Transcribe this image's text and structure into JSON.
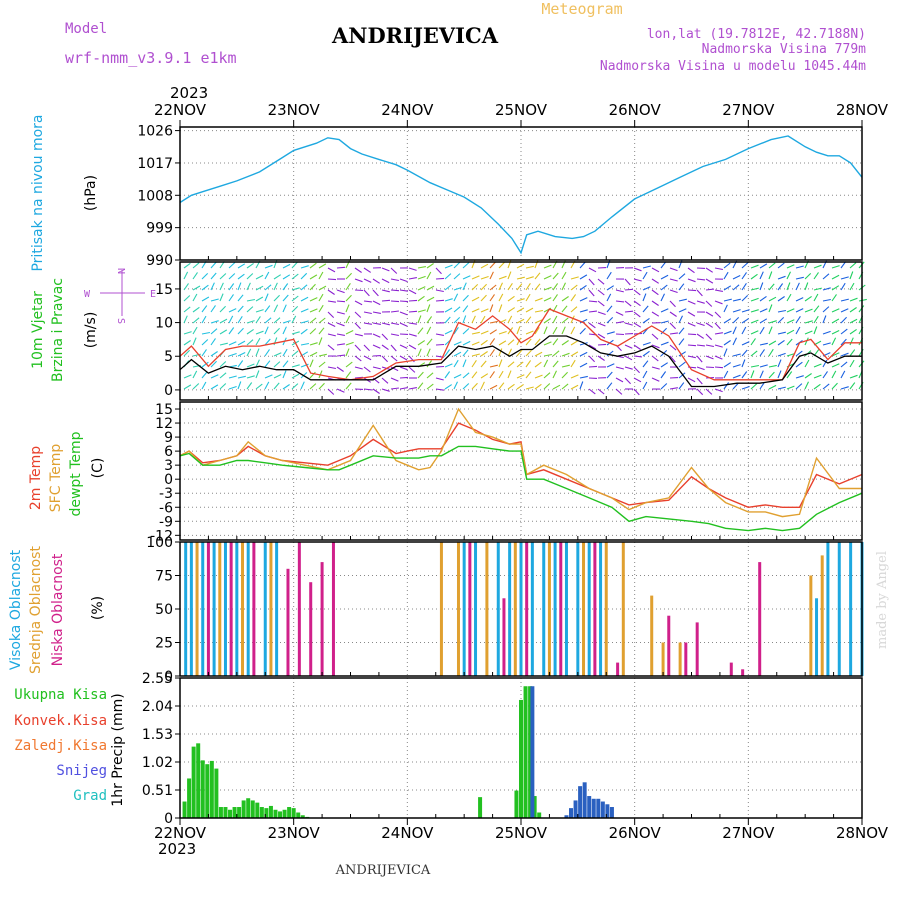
{
  "header": {
    "model_label": "Model",
    "model_name": "wrf-nmm_v3.9.1  e1km",
    "station": "ANDRIJEVICA",
    "product": "Meteogram",
    "lonlat": "lon,lat (19.7812E, 42.7188N)",
    "elevation": "Nadmorska Visina 779m",
    "model_elevation": "Nadmorska Visina u modelu 1045.44m",
    "year_top": "2023",
    "year_bottom": "2023",
    "footer_station": "ANDRIJEVICA",
    "credit": "made by Angel"
  },
  "colors": {
    "pressure": "#1ea8e0",
    "temp2m": "#e8402c",
    "sfc": "#e0a030",
    "dewpt": "#22c020",
    "wind_speed": "#000000",
    "wind_gust": "#e8402c",
    "purple_text": "#b050d0",
    "orange_text": "#f0c060"
  },
  "chart_data": [
    {
      "type": "line",
      "panel": "pressure",
      "ylabel": "Pritisak na nivou mora",
      "unit": "(hPa)",
      "x_ticks": [
        "22NOV",
        "23NOV",
        "24NOV",
        "25NOV",
        "26NOV",
        "27NOV",
        "28NOV"
      ],
      "ylim": [
        990,
        1027
      ],
      "y_ticks": [
        990,
        999,
        1008,
        1017,
        1026
      ],
      "grid": true,
      "x": [
        0,
        0.1,
        0.2,
        0.35,
        0.5,
        0.7,
        0.9,
        1.0,
        1.2,
        1.3,
        1.4,
        1.5,
        1.6,
        1.75,
        1.9,
        2.0,
        2.2,
        2.35,
        2.5,
        2.65,
        2.8,
        2.92,
        3.0,
        3.05,
        3.15,
        3.3,
        3.45,
        3.55,
        3.65,
        3.8,
        4.0,
        4.2,
        4.4,
        4.6,
        4.8,
        5.0,
        5.2,
        5.35,
        5.5,
        5.6,
        5.7,
        5.8,
        5.9,
        6.0
      ],
      "values": [
        1006,
        1008,
        1009,
        1010.5,
        1012,
        1014.5,
        1018.5,
        1020.5,
        1022.5,
        1024,
        1023.5,
        1021,
        1019.5,
        1018,
        1016.5,
        1015,
        1011.5,
        1009.5,
        1007.5,
        1004.5,
        1000,
        996,
        992,
        997,
        998,
        996.5,
        996,
        996.5,
        998,
        1002,
        1007,
        1010,
        1013,
        1016,
        1018,
        1021,
        1023.5,
        1024.5,
        1021.5,
        1020,
        1019,
        1019,
        1017,
        1013
      ]
    },
    {
      "type": "line",
      "panel": "wind",
      "ylabel": "10m Vjetar Brzina i Pravac",
      "unit": "(m/s)",
      "ylim": [
        -1.5,
        19
      ],
      "y_ticks": [
        0,
        5,
        10,
        15
      ],
      "compass": {
        "n": "N",
        "s": "S",
        "e": "E",
        "w": "W"
      },
      "grid": true,
      "series": [
        {
          "key": "speed",
          "x": [
            0,
            0.1,
            0.25,
            0.4,
            0.55,
            0.7,
            0.85,
            1.0,
            1.15,
            1.3,
            1.5,
            1.7,
            1.9,
            2.1,
            2.3,
            2.45,
            2.6,
            2.75,
            2.9,
            3.0,
            3.1,
            3.25,
            3.4,
            3.55,
            3.7,
            3.85,
            4.0,
            4.15,
            4.3,
            4.5,
            4.7,
            4.9,
            5.1,
            5.3,
            5.45,
            5.55,
            5.7,
            5.85,
            6.0
          ],
          "values": [
            3,
            4.5,
            2.5,
            3.5,
            3,
            3.5,
            3,
            3,
            1.5,
            1.5,
            1.5,
            1.5,
            3.5,
            3.5,
            4,
            6.5,
            6,
            6.5,
            5,
            6,
            6,
            8,
            8,
            7,
            5.5,
            5,
            5.5,
            6.5,
            5,
            0.5,
            0.5,
            1,
            1,
            1.5,
            5,
            5.5,
            4,
            5,
            5
          ]
        },
        {
          "key": "gust",
          "x": [
            0,
            0.1,
            0.25,
            0.4,
            0.55,
            0.7,
            0.85,
            1.0,
            1.15,
            1.3,
            1.5,
            1.7,
            1.9,
            2.1,
            2.3,
            2.45,
            2.6,
            2.75,
            2.9,
            3.0,
            3.1,
            3.25,
            3.4,
            3.55,
            3.7,
            3.85,
            4.0,
            4.15,
            4.3,
            4.5,
            4.7,
            4.9,
            5.1,
            5.3,
            5.45,
            5.55,
            5.7,
            5.85,
            6.0
          ],
          "values": [
            5,
            6.5,
            3.5,
            6,
            6.5,
            6.5,
            7,
            7.5,
            2.5,
            2,
            1.5,
            2,
            4,
            4.5,
            4.5,
            10,
            9,
            11,
            9,
            7,
            8,
            12,
            11,
            10,
            7.5,
            6.5,
            8,
            9.5,
            8,
            3,
            1.5,
            1.5,
            1.5,
            1.5,
            7,
            7.5,
            4.5,
            7,
            7
          ]
        }
      ]
    },
    {
      "type": "line",
      "panel": "temperature",
      "ylabels": [
        "2m Temp",
        "SFC Temp",
        "dewpt Temp"
      ],
      "unit": "(C)",
      "ylim": [
        -13,
        16.5
      ],
      "y_ticks": [
        -12,
        -9,
        -6,
        -3,
        0,
        3,
        6,
        9,
        12,
        15
      ],
      "grid": true,
      "series": [
        {
          "key": "temp2m",
          "x": [
            0,
            0.08,
            0.2,
            0.35,
            0.5,
            0.6,
            0.75,
            0.9,
            1.1,
            1.3,
            1.4,
            1.5,
            1.7,
            1.9,
            2.0,
            2.1,
            2.2,
            2.3,
            2.45,
            2.6,
            2.75,
            2.9,
            3.0,
            3.05,
            3.2,
            3.4,
            3.6,
            3.8,
            3.95,
            4.1,
            4.3,
            4.5,
            4.65,
            4.8,
            5.0,
            5.15,
            5.3,
            5.45,
            5.6,
            5.8,
            6.0
          ],
          "values": [
            5,
            6,
            3.5,
            4,
            5,
            7,
            5,
            4,
            3.5,
            3,
            4,
            5,
            8.5,
            5.5,
            6,
            6.5,
            6.5,
            6.5,
            12,
            10.5,
            8.5,
            7.5,
            8,
            1,
            2,
            0,
            -2,
            -4,
            -5.5,
            -5,
            -4.5,
            0.5,
            -2,
            -4,
            -6,
            -5.5,
            -6,
            -6,
            1,
            -1,
            1
          ]
        },
        {
          "key": "sfc",
          "x": [
            0,
            0.08,
            0.2,
            0.35,
            0.5,
            0.6,
            0.75,
            0.9,
            1.1,
            1.3,
            1.4,
            1.5,
            1.7,
            1.9,
            2.0,
            2.1,
            2.2,
            2.3,
            2.45,
            2.6,
            2.75,
            2.9,
            3.0,
            3.05,
            3.2,
            3.4,
            3.6,
            3.8,
            3.95,
            4.1,
            4.3,
            4.5,
            4.65,
            4.8,
            5.0,
            5.15,
            5.3,
            5.45,
            5.6,
            5.8,
            6.0
          ],
          "values": [
            5,
            6,
            3,
            4,
            5,
            8,
            5,
            4,
            3,
            2,
            3,
            4,
            11.5,
            4,
            3,
            2,
            2.5,
            6,
            15,
            10,
            9,
            7.5,
            7.5,
            1,
            3,
            1,
            -2,
            -4,
            -6.5,
            -5,
            -4,
            2.5,
            -2,
            -5,
            -7,
            -7,
            -8,
            -7.5,
            4.5,
            -2,
            -2
          ]
        },
        {
          "key": "dewpt",
          "x": [
            0,
            0.08,
            0.2,
            0.35,
            0.5,
            0.6,
            0.75,
            0.9,
            1.1,
            1.3,
            1.4,
            1.5,
            1.7,
            1.9,
            2.0,
            2.1,
            2.2,
            2.3,
            2.45,
            2.6,
            2.75,
            2.9,
            3.0,
            3.05,
            3.2,
            3.4,
            3.6,
            3.8,
            3.95,
            4.1,
            4.3,
            4.5,
            4.65,
            4.8,
            5.0,
            5.15,
            5.3,
            5.45,
            5.6,
            5.8,
            6.0
          ],
          "values": [
            5,
            5.5,
            3,
            3,
            4,
            4,
            3.5,
            3,
            2.5,
            2,
            2,
            3,
            5,
            4.5,
            4.5,
            4.5,
            5,
            5,
            7,
            7,
            6.5,
            6,
            6,
            0,
            0,
            -2,
            -4,
            -6,
            -9,
            -8,
            -8.5,
            -9,
            -9.5,
            -10.5,
            -11,
            -10.5,
            -11,
            -10.5,
            -7.5,
            -5,
            -3
          ]
        }
      ]
    },
    {
      "type": "bar",
      "panel": "cloud",
      "ylabels": [
        "Visoka Oblacnost",
        "Srednja Oblacnost",
        "Niska Oblacnost"
      ],
      "unit": "(%)",
      "ylim": [
        0,
        100
      ],
      "y_ticks": [
        0,
        25,
        50,
        75,
        100
      ],
      "grid": true,
      "series": [
        {
          "key": "high",
          "x": [
            0.05,
            0.1,
            0.2,
            0.3,
            0.4,
            0.5,
            0.6,
            0.75,
            0.85,
            2.5,
            2.6,
            2.8,
            2.9,
            3.0,
            3.1,
            3.2,
            3.3,
            3.4,
            3.5,
            3.6,
            3.7,
            5.6,
            5.7,
            5.8,
            5.9,
            6.0
          ],
          "values": [
            100,
            100,
            100,
            100,
            100,
            100,
            100,
            100,
            100,
            100,
            100,
            100,
            100,
            100,
            100,
            100,
            100,
            100,
            100,
            100,
            100,
            58,
            100,
            100,
            100,
            100
          ]
        },
        {
          "key": "middle",
          "x": [
            0.15,
            0.35,
            0.55,
            0.8,
            2.3,
            2.45,
            2.7,
            2.95,
            3.25,
            3.55,
            3.75,
            3.9,
            4.15,
            4.25,
            4.4,
            5.55,
            5.65
          ],
          "values": [
            100,
            100,
            100,
            100,
            100,
            100,
            100,
            100,
            100,
            100,
            100,
            100,
            60,
            25,
            25,
            75,
            90
          ]
        },
        {
          "key": "low",
          "x": [
            0.25,
            0.45,
            0.65,
            0.95,
            1.05,
            1.15,
            1.25,
            1.35,
            2.55,
            2.85,
            3.05,
            3.35,
            3.65,
            3.85,
            4.3,
            4.45,
            4.55,
            4.85,
            4.95,
            5.1
          ],
          "values": [
            100,
            100,
            100,
            80,
            100,
            70,
            85,
            100,
            100,
            58,
            100,
            100,
            100,
            10,
            45,
            25,
            40,
            10,
            5,
            85
          ]
        }
      ]
    },
    {
      "type": "bar",
      "panel": "precip",
      "ylabel": "1hr Precip",
      "unit": "(mm)",
      "legend": [
        "Ukupna Kisa",
        "Konvek.Kisa",
        "Zaledj.Kisa",
        "Snijeg",
        "Grad"
      ],
      "ylim": [
        0,
        2.55
      ],
      "y_ticks": [
        0,
        0.51,
        1.02,
        1.53,
        2.04,
        2.55
      ],
      "grid": true,
      "series": [
        {
          "key": "total_rain",
          "x": [
            0.04,
            0.08,
            0.12,
            0.16,
            0.2,
            0.24,
            0.28,
            0.32,
            0.36,
            0.4,
            0.44,
            0.48,
            0.52,
            0.56,
            0.6,
            0.64,
            0.68,
            0.72,
            0.76,
            0.8,
            0.84,
            0.88,
            0.92,
            0.96,
            1.0,
            1.04,
            1.08,
            1.12,
            2.64,
            2.96,
            3.0,
            3.04,
            3.08,
            3.12,
            3.16
          ],
          "values": [
            0.3,
            0.72,
            1.3,
            1.36,
            1.05,
            0.98,
            1.04,
            0.9,
            0.2,
            0.2,
            0.15,
            0.2,
            0.2,
            0.32,
            0.36,
            0.32,
            0.28,
            0.2,
            0.18,
            0.22,
            0.15,
            0.12,
            0.15,
            0.2,
            0.18,
            0.1,
            0.05,
            0.02,
            0.38,
            0.5,
            2.15,
            2.4,
            2.4,
            0.4,
            0.1
          ]
        },
        {
          "key": "snow",
          "x": [
            3.1,
            3.4,
            3.44,
            3.48,
            3.52,
            3.56,
            3.6,
            3.64,
            3.68,
            3.72,
            3.76,
            3.8
          ],
          "values": [
            2.4,
            0.05,
            0.18,
            0.32,
            0.58,
            0.65,
            0.4,
            0.35,
            0.35,
            0.3,
            0.25,
            0.2
          ]
        }
      ]
    }
  ]
}
